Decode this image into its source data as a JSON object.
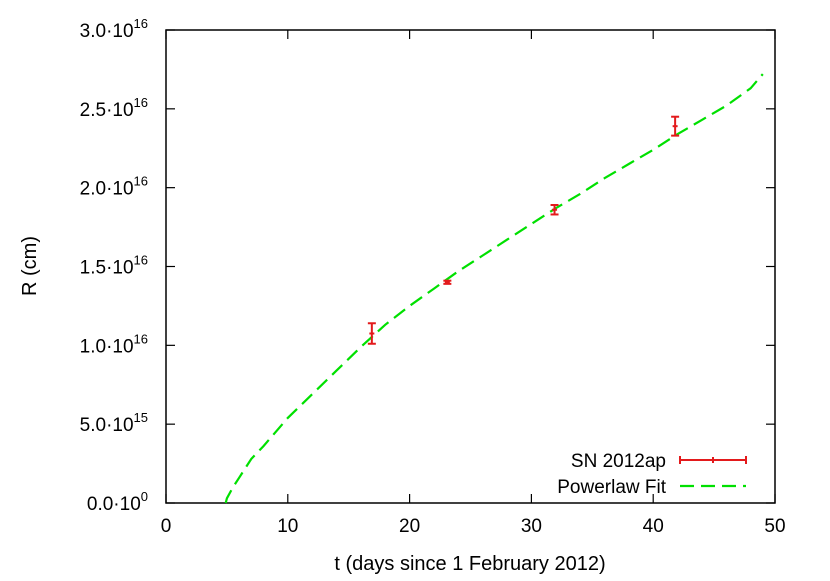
{
  "chart_data": {
    "type": "scatter",
    "xlabel": "t (days since 1 February 2012)",
    "ylabel": "R (cm)",
    "xlim": [
      0,
      50
    ],
    "ylim": [
      0,
      3e+16
    ],
    "x_ticks": [
      0,
      10,
      20,
      30,
      40,
      50
    ],
    "x_tick_labels": [
      "0",
      "10",
      "20",
      "30",
      "40",
      "50"
    ],
    "y_ticks": [
      0,
      5000000000000000.0,
      1e+16,
      1.5e+16,
      2e+16,
      2.5e+16,
      3e+16
    ],
    "y_tick_labels": [
      {
        "mantissa": "0.0·10",
        "exp": "0"
      },
      {
        "mantissa": "5.0·10",
        "exp": "15"
      },
      {
        "mantissa": "1.0·10",
        "exp": "16"
      },
      {
        "mantissa": "1.5·10",
        "exp": "16"
      },
      {
        "mantissa": "2.0·10",
        "exp": "16"
      },
      {
        "mantissa": "2.5·10",
        "exp": "16"
      },
      {
        "mantissa": "3.0·10",
        "exp": "16"
      }
    ],
    "grid": false,
    "legend_position": "bottom-right",
    "series": [
      {
        "name": "SN 2012ap",
        "kind": "errorbars",
        "color": "#e31a1c",
        "points": [
          {
            "x": 16.9,
            "y": 1.075e+16,
            "yerr_low": 1.01e+16,
            "yerr_high": 1.14e+16
          },
          {
            "x": 23.1,
            "y": 1.4e+16,
            "yerr_low": 1.39e+16,
            "yerr_high": 1.41e+16
          },
          {
            "x": 31.9,
            "y": 1.86e+16,
            "yerr_low": 1.83e+16,
            "yerr_high": 1.89e+16
          },
          {
            "x": 41.8,
            "y": 2.39e+16,
            "yerr_low": 2.33e+16,
            "yerr_high": 2.45e+16
          }
        ]
      },
      {
        "name": "Powerlaw Fit",
        "kind": "dashed-line",
        "color": "#00e000",
        "x": [
          4.9,
          5.0,
          5.5,
          6,
          7,
          8,
          10,
          12,
          14,
          16,
          18,
          20,
          22,
          24,
          26,
          28,
          30,
          32,
          34,
          36,
          38,
          40,
          42,
          44,
          46,
          48,
          49
        ],
        "y": [
          0.0,
          300000000000000.0,
          1000000000000000.0,
          1600000000000000.0,
          2800000000000000.0,
          3600000000000000.0,
          5400000000000000.0,
          6900000000000000.0,
          8400000000000000.0,
          9900000000000000.0,
          1.13e+16,
          1.25e+16,
          1.36e+16,
          1.47e+16,
          1.57e+16,
          1.67e+16,
          1.77e+16,
          1.87e+16,
          1.96e+16,
          2.06e+16,
          2.15e+16,
          2.24e+16,
          2.34e+16,
          2.43e+16,
          2.52e+16,
          2.63e+16,
          2.72e+16
        ]
      }
    ]
  }
}
